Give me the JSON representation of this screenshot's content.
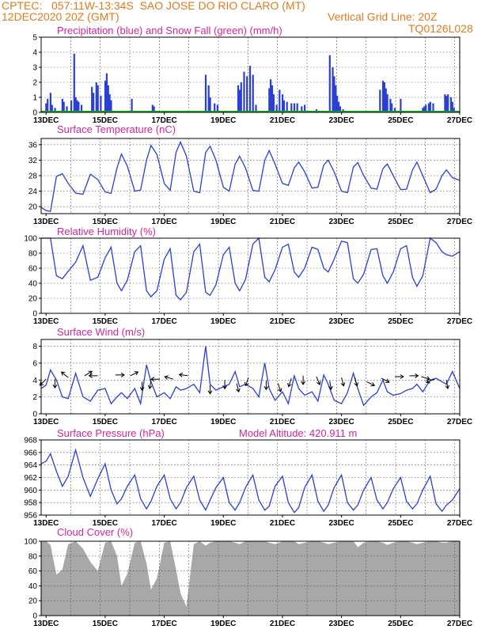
{
  "header": {
    "source": "CPTEC:",
    "coords": "057:11W-13:34S",
    "location": "SAO JOSE DO RIO CLARO (MT)",
    "datetime": "12DEC2020 20Z (GMT)",
    "grid_note": "Vertical Grid Line: 20Z",
    "code": "TQ0126L028"
  },
  "x_ticks": [
    "13DEC",
    "15DEC",
    "17DEC",
    "19DEC",
    "21DEC",
    "23DEC",
    "25DEC",
    "27DEC"
  ],
  "colors": {
    "series": "#2a3fd6",
    "snow": "#1faa1f",
    "cloud": "#a8a8a8",
    "title": "#d6249a",
    "header": "#e07a1f"
  },
  "chart_data": [
    {
      "type": "bar",
      "title": "Precipitation (blue) and Snow Fall (green) (mm/h)",
      "ylim": [
        0,
        5
      ],
      "yticks": [
        0,
        1,
        2,
        3,
        4,
        5
      ],
      "x_range_days": [
        12.833,
        27.0
      ],
      "series": [
        {
          "name": "Precipitation",
          "x": [
            13.0,
            13.05,
            13.15,
            13.2,
            13.3,
            13.55,
            13.6,
            13.7,
            13.85,
            13.95,
            14.0,
            14.05,
            14.1,
            14.2,
            14.55,
            14.6,
            14.7,
            14.75,
            14.85,
            15.0,
            15.05,
            15.1,
            15.15,
            15.2,
            15.9,
            16.6,
            16.65,
            18.4,
            18.5,
            18.55,
            18.7,
            18.8,
            19.5,
            19.55,
            19.6,
            19.7,
            19.8,
            19.9,
            20.0,
            20.1,
            20.55,
            20.6,
            20.65,
            20.7,
            20.8,
            20.9,
            21.0,
            21.05,
            21.15,
            21.3,
            21.4,
            21.5,
            21.65,
            21.75,
            22.15,
            22.6,
            22.7,
            22.75,
            22.8,
            22.85,
            22.9,
            22.95,
            23.05,
            23.1,
            24.3,
            24.4,
            24.45,
            24.5,
            24.55,
            24.65,
            24.7,
            24.8,
            25.0,
            25.75,
            25.8,
            25.85,
            25.95,
            26.0,
            26.1,
            26.5,
            26.55,
            26.6,
            26.7,
            26.75,
            26.8
          ],
          "values": [
            0.6,
            0.9,
            1.3,
            0.5,
            0.3,
            0.9,
            0.7,
            0.4,
            0.8,
            3.9,
            1.0,
            0.8,
            0.7,
            0.5,
            1.7,
            1.3,
            2.0,
            1.8,
            1.1,
            2.1,
            2.6,
            1.8,
            1.2,
            0.8,
            0.9,
            0.5,
            0.4,
            2.5,
            1.8,
            1.0,
            0.6,
            0.5,
            1.8,
            1.5,
            2.0,
            2.7,
            2.4,
            3.1,
            2.5,
            0.5,
            1.6,
            2.2,
            1.8,
            1.2,
            0.5,
            1.5,
            1.2,
            0.8,
            0.7,
            0.6,
            0.6,
            0.6,
            0.4,
            0.5,
            0.2,
            3.8,
            3.0,
            2.4,
            1.8,
            1.1,
            0.7,
            0.4,
            0.2,
            0.1,
            1.5,
            2.1,
            2.0,
            1.6,
            1.2,
            0.9,
            0.6,
            0.3,
            0.9,
            0.3,
            0.4,
            0.5,
            0.6,
            0.7,
            0.6,
            1.2,
            1.1,
            1.2,
            1.0,
            0.7,
            0.3
          ]
        },
        {
          "name": "Snow Fall",
          "values": [
            0
          ]
        }
      ]
    },
    {
      "type": "line",
      "title": "Surface Temperature (nC)",
      "ylim": [
        18.2,
        37.6
      ],
      "yticks": [
        20,
        24,
        28,
        32,
        36
      ],
      "x": [
        12.833,
        13.0,
        13.15,
        13.35,
        13.55,
        13.75,
        14.0,
        14.25,
        14.5,
        14.75,
        15.0,
        15.2,
        15.4,
        15.55,
        15.75,
        16.0,
        16.2,
        16.4,
        16.55,
        16.75,
        17.0,
        17.2,
        17.4,
        17.55,
        17.75,
        18.0,
        18.2,
        18.4,
        18.55,
        18.75,
        19.0,
        19.2,
        19.4,
        19.55,
        19.75,
        20.0,
        20.2,
        20.4,
        20.55,
        20.75,
        21.0,
        21.2,
        21.4,
        21.55,
        21.75,
        22.0,
        22.2,
        22.4,
        22.55,
        22.75,
        23.0,
        23.2,
        23.4,
        23.55,
        23.75,
        24.0,
        24.2,
        24.4,
        24.55,
        24.75,
        25.0,
        25.2,
        25.4,
        25.55,
        25.75,
        26.0,
        26.2,
        26.4,
        26.55,
        26.75,
        27.0
      ],
      "values": [
        19.8,
        19.0,
        18.8,
        27.8,
        28.5,
        26.0,
        23.5,
        23.2,
        28.4,
        27.0,
        23.8,
        23.4,
        30.0,
        33.6,
        30.5,
        24.0,
        24.3,
        32.0,
        35.8,
        33.5,
        26.0,
        24.2,
        34.0,
        36.7,
        33.0,
        24.0,
        23.6,
        34.0,
        35.6,
        32.0,
        25.0,
        24.0,
        31.0,
        33.0,
        30.0,
        24.2,
        24.0,
        32.0,
        34.5,
        31.0,
        26.0,
        25.5,
        30.0,
        31.5,
        29.0,
        24.8,
        25.0,
        30.8,
        32.0,
        29.0,
        24.0,
        23.6,
        30.2,
        31.4,
        28.0,
        24.8,
        24.5,
        29.8,
        31.0,
        28.0,
        24.4,
        24.5,
        29.5,
        31.5,
        28.0,
        23.6,
        24.5,
        28.0,
        29.5,
        27.5,
        26.8
      ]
    },
    {
      "type": "line",
      "title": "Relative Humidity (%)",
      "ylim": [
        0,
        100
      ],
      "yticks": [
        0,
        20,
        40,
        60,
        80,
        100
      ],
      "x": [
        12.833,
        13.0,
        13.15,
        13.35,
        13.55,
        13.75,
        14.0,
        14.25,
        14.5,
        14.75,
        15.0,
        15.2,
        15.4,
        15.55,
        15.75,
        16.0,
        16.2,
        16.4,
        16.55,
        16.75,
        17.0,
        17.2,
        17.4,
        17.55,
        17.75,
        18.0,
        18.2,
        18.4,
        18.55,
        18.75,
        19.0,
        19.2,
        19.4,
        19.55,
        19.75,
        20.0,
        20.2,
        20.4,
        20.55,
        20.75,
        21.0,
        21.2,
        21.4,
        21.55,
        21.75,
        22.0,
        22.2,
        22.4,
        22.55,
        22.75,
        23.0,
        23.2,
        23.4,
        23.55,
        23.75,
        24.0,
        24.2,
        24.4,
        24.55,
        24.75,
        25.0,
        25.2,
        25.4,
        25.55,
        25.75,
        26.0,
        26.2,
        26.4,
        26.55,
        26.75,
        27.0
      ],
      "values": [
        100,
        100,
        100,
        50,
        46,
        56,
        68,
        90,
        44,
        48,
        74,
        88,
        40,
        30,
        44,
        82,
        90,
        30,
        22,
        30,
        72,
        86,
        24,
        18,
        28,
        82,
        92,
        28,
        24,
        38,
        78,
        88,
        40,
        30,
        45,
        92,
        100,
        48,
        42,
        58,
        88,
        92,
        55,
        48,
        60,
        88,
        85,
        60,
        55,
        72,
        96,
        94,
        46,
        40,
        52,
        85,
        86,
        50,
        40,
        55,
        86,
        90,
        48,
        36,
        50,
        100,
        94,
        82,
        78,
        76,
        82
      ]
    },
    {
      "type": "line",
      "title": "Surface Wind (m/s)",
      "ylim": [
        0,
        8.8
      ],
      "yticks": [
        0,
        2,
        4,
        6,
        8
      ],
      "x": [
        12.833,
        13.0,
        13.15,
        13.35,
        13.55,
        13.75,
        14.0,
        14.25,
        14.5,
        14.75,
        15.0,
        15.2,
        15.4,
        15.55,
        15.75,
        16.0,
        16.2,
        16.4,
        16.55,
        16.75,
        17.0,
        17.2,
        17.4,
        17.55,
        17.75,
        18.0,
        18.2,
        18.4,
        18.55,
        18.75,
        19.0,
        19.2,
        19.4,
        19.55,
        19.75,
        20.0,
        20.2,
        20.4,
        20.55,
        20.75,
        21.0,
        21.2,
        21.4,
        21.55,
        21.75,
        22.0,
        22.2,
        22.4,
        22.55,
        22.75,
        23.0,
        23.2,
        23.4,
        23.55,
        23.75,
        24.0,
        24.2,
        24.4,
        24.55,
        24.75,
        25.0,
        25.2,
        25.4,
        25.55,
        25.75,
        26.0,
        26.2,
        26.4,
        26.55,
        26.75,
        27.0
      ],
      "values": [
        3.0,
        3.4,
        5.2,
        4.0,
        2.0,
        1.8,
        4.8,
        2.0,
        1.5,
        2.8,
        3.0,
        1.2,
        2.0,
        2.5,
        1.8,
        3.0,
        1.2,
        5.8,
        3.8,
        2.0,
        2.5,
        1.8,
        3.2,
        2.8,
        3.0,
        3.5,
        2.5,
        8.0,
        3.5,
        2.8,
        3.2,
        3.5,
        5.0,
        3.2,
        3.5,
        3.0,
        2.0,
        6.0,
        3.0,
        1.6,
        2.6,
        1.2,
        4.5,
        3.0,
        2.2,
        2.6,
        1.5,
        4.6,
        3.5,
        1.6,
        1.2,
        2.5,
        4.8,
        3.0,
        1.0,
        2.0,
        2.5,
        4.0,
        2.6,
        2.2,
        2.4,
        2.8,
        3.0,
        3.5,
        2.6,
        4.0,
        4.2,
        3.8,
        3.5,
        5.0,
        3.0
      ],
      "arrows": [
        {
          "x": 13.0,
          "y": 4.1,
          "dx": -1,
          "dy": -1
        },
        {
          "x": 13.3,
          "y": 4.1,
          "dx": 0,
          "dy": -1.3
        },
        {
          "x": 13.75,
          "y": 4.3,
          "dx": -1,
          "dy": 0.8
        },
        {
          "x": 14.3,
          "y": 4.5,
          "dx": 1,
          "dy": 0.6
        },
        {
          "x": 14.75,
          "y": 4.5,
          "dx": -1,
          "dy": 0
        },
        {
          "x": 15.35,
          "y": 4.6,
          "dx": 1,
          "dy": 0
        },
        {
          "x": 15.85,
          "y": 4.5,
          "dx": 1,
          "dy": 0.5
        },
        {
          "x": 16.25,
          "y": 3.8,
          "dx": 0,
          "dy": -1.2
        },
        {
          "x": 16.55,
          "y": 4.0,
          "dx": -0.2,
          "dy": -1.3
        },
        {
          "x": 16.85,
          "y": 4.1,
          "dx": -1,
          "dy": 0
        },
        {
          "x": 17.3,
          "y": 4.1,
          "dx": -1,
          "dy": 0.3
        },
        {
          "x": 17.8,
          "y": 4.5,
          "dx": -1.4,
          "dy": 0.2
        },
        {
          "x": 18.55,
          "y": 3.4,
          "dx": 0,
          "dy": -1.3
        },
        {
          "x": 19.05,
          "y": 4.0,
          "dx": 0,
          "dy": -1.3
        },
        {
          "x": 19.45,
          "y": 3.6,
          "dx": 0.3,
          "dy": -1.2
        },
        {
          "x": 19.85,
          "y": 4.3,
          "dx": -0.4,
          "dy": -1.2
        },
        {
          "x": 20.45,
          "y": 3.9,
          "dx": 0,
          "dy": -1.3
        },
        {
          "x": 20.85,
          "y": 3.6,
          "dx": 0.4,
          "dy": -1.2
        },
        {
          "x": 21.3,
          "y": 4.2,
          "dx": -0.4,
          "dy": -1.2
        },
        {
          "x": 21.7,
          "y": 4.5,
          "dx": 0,
          "dy": -1.3
        },
        {
          "x": 22.15,
          "y": 4.4,
          "dx": 0.5,
          "dy": -1.2
        },
        {
          "x": 22.6,
          "y": 3.9,
          "dx": 0.2,
          "dy": -1.3
        },
        {
          "x": 23.0,
          "y": 4.3,
          "dx": 0.3,
          "dy": -1.2
        },
        {
          "x": 23.45,
          "y": 4.3,
          "dx": 0.3,
          "dy": -1.2
        },
        {
          "x": 23.85,
          "y": 3.8,
          "dx": 1,
          "dy": -0.5
        },
        {
          "x": 24.35,
          "y": 4.2,
          "dx": 1,
          "dy": -0.5
        },
        {
          "x": 24.8,
          "y": 4.4,
          "dx": 1,
          "dy": 0
        },
        {
          "x": 25.3,
          "y": 4.5,
          "dx": 1,
          "dy": 0
        },
        {
          "x": 25.7,
          "y": 4.4,
          "dx": 1,
          "dy": -0.3
        },
        {
          "x": 26.15,
          "y": 4.1,
          "dx": -1,
          "dy": -0.4
        },
        {
          "x": 26.55,
          "y": 4.0,
          "dx": 0.2,
          "dy": -1.3
        }
      ]
    },
    {
      "type": "line",
      "title": "Surface Pressure (hPa)",
      "subtitle": "Model Altitude: 420.911 m",
      "ylim": [
        956,
        968
      ],
      "yticks": [
        956,
        958,
        960,
        962,
        964,
        966,
        968
      ],
      "x": [
        12.833,
        13.0,
        13.15,
        13.35,
        13.55,
        13.75,
        14.0,
        14.25,
        14.5,
        14.75,
        15.0,
        15.2,
        15.4,
        15.55,
        15.75,
        16.0,
        16.2,
        16.4,
        16.55,
        16.75,
        17.0,
        17.2,
        17.4,
        17.55,
        17.75,
        18.0,
        18.2,
        18.4,
        18.55,
        18.75,
        19.0,
        19.2,
        19.4,
        19.55,
        19.75,
        20.0,
        20.2,
        20.4,
        20.55,
        20.75,
        21.0,
        21.2,
        21.4,
        21.55,
        21.75,
        22.0,
        22.2,
        22.4,
        22.55,
        22.75,
        23.0,
        23.2,
        23.4,
        23.55,
        23.75,
        24.0,
        24.2,
        24.4,
        24.55,
        24.75,
        25.0,
        25.2,
        25.4,
        25.55,
        25.75,
        26.0,
        26.2,
        26.4,
        26.55,
        26.75,
        27.0
      ],
      "values": [
        964.2,
        964.6,
        965.8,
        963.0,
        960.6,
        962.2,
        966.4,
        962.0,
        959.0,
        961.8,
        964.2,
        960.0,
        957.8,
        958.6,
        960.6,
        962.4,
        958.6,
        957.0,
        958.2,
        960.6,
        962.4,
        958.6,
        957.0,
        958.0,
        960.4,
        962.2,
        958.4,
        956.8,
        958.4,
        960.4,
        962.0,
        958.0,
        956.8,
        958.0,
        960.4,
        962.4,
        958.4,
        956.8,
        957.4,
        960.6,
        962.2,
        958.0,
        956.4,
        957.2,
        960.4,
        962.4,
        958.2,
        956.6,
        957.6,
        960.4,
        962.4,
        958.0,
        956.8,
        957.6,
        960.0,
        962.0,
        958.4,
        957.0,
        958.0,
        960.2,
        962.0,
        958.2,
        957.0,
        957.8,
        960.0,
        962.2,
        957.8,
        956.6,
        957.6,
        958.4,
        960.2
      ]
    },
    {
      "type": "area",
      "title": "Cloud Cover (%)",
      "ylim": [
        0,
        100
      ],
      "yticks": [
        0,
        20,
        40,
        60,
        80,
        100
      ],
      "x": [
        12.833,
        13.0,
        13.15,
        13.35,
        13.55,
        13.75,
        14.0,
        14.25,
        14.5,
        14.75,
        15.0,
        15.2,
        15.4,
        15.55,
        15.75,
        16.0,
        16.2,
        16.4,
        16.55,
        16.75,
        17.0,
        17.2,
        17.4,
        17.55,
        17.75,
        18.0,
        18.2,
        18.4,
        18.55,
        18.75,
        19.0,
        19.2,
        19.4,
        19.55,
        19.75,
        20.0,
        20.2,
        20.4,
        20.55,
        20.75,
        21.0,
        21.2,
        21.4,
        21.55,
        21.75,
        22.0,
        22.2,
        22.4,
        22.55,
        22.75,
        23.0,
        23.2,
        23.4,
        23.55,
        23.75,
        24.0,
        24.2,
        24.4,
        24.55,
        24.75,
        25.0,
        25.2,
        25.4,
        25.55,
        25.75,
        26.0,
        26.2,
        26.4,
        26.55,
        26.75,
        27.0
      ],
      "values": [
        100,
        100,
        95,
        55,
        62,
        96,
        100,
        90,
        72,
        60,
        98,
        100,
        80,
        40,
        56,
        98,
        100,
        70,
        35,
        50,
        98,
        100,
        62,
        30,
        12,
        96,
        100,
        94,
        98,
        100,
        100,
        100,
        98,
        96,
        100,
        100,
        100,
        100,
        98,
        96,
        100,
        100,
        100,
        96,
        98,
        100,
        100,
        98,
        96,
        98,
        100,
        100,
        100,
        92,
        98,
        100,
        100,
        98,
        95,
        98,
        100,
        100,
        98,
        96,
        98,
        100,
        100,
        98,
        98,
        100,
        100
      ]
    }
  ]
}
